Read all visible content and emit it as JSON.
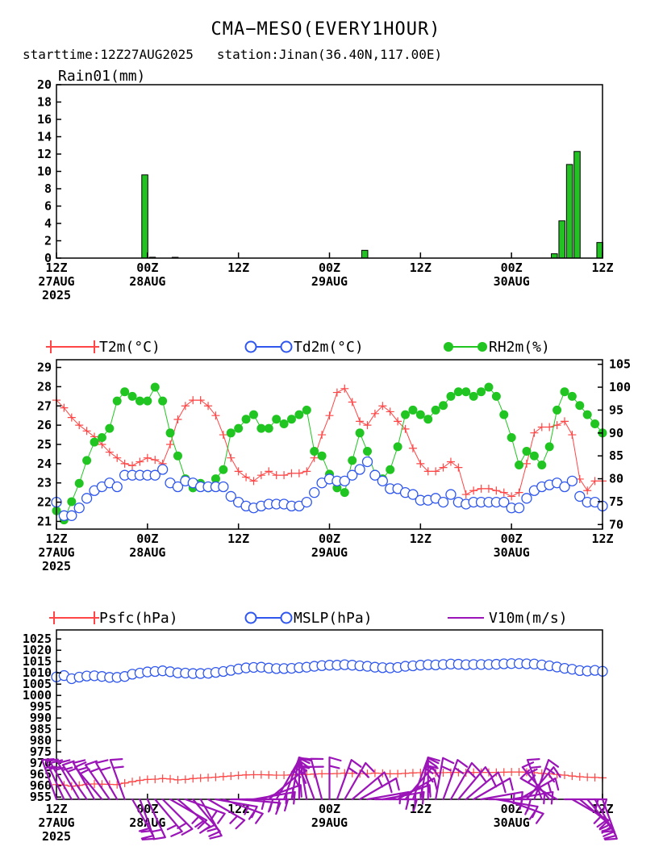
{
  "figure": {
    "title": "CMA−MESO(EVERY1HOUR)",
    "subtitle": "starttime:12Z27AUG2025   station:Jinan(36.40N,117.00E)"
  },
  "colors": {
    "rain": "#22c222",
    "t2m": "#ff4545",
    "td2m": "#2f57ee",
    "rh2m": "#21c521",
    "psfc": "#ff4545",
    "mslp": "#2f57ee",
    "wind": "#9a14b8"
  },
  "chart_data": [
    {
      "type": "bar",
      "title": "Rain01(mm)",
      "x_range": [
        0,
        72
      ],
      "ylim": [
        0,
        20
      ],
      "yticks": [
        "0",
        "2",
        "4",
        "6",
        "8",
        "10",
        "12",
        "14",
        "16",
        "18",
        "20"
      ],
      "xticks": [
        {
          "pos": 0,
          "lines": [
            "12Z",
            "27AUG",
            "2025"
          ]
        },
        {
          "pos": 12,
          "lines": [
            "00Z",
            "28AUG"
          ]
        },
        {
          "pos": 24,
          "lines": [
            "12Z"
          ]
        },
        {
          "pos": 36,
          "lines": [
            "00Z",
            "29AUG"
          ]
        },
        {
          "pos": 48,
          "lines": [
            "12Z"
          ]
        },
        {
          "pos": 60,
          "lines": [
            "00Z",
            "30AUG"
          ]
        },
        {
          "pos": 72,
          "lines": [
            "12Z"
          ]
        }
      ],
      "series": [
        {
          "values": [
            0,
            0,
            0,
            0,
            0,
            0,
            0,
            0,
            0,
            0,
            0,
            0,
            9.6,
            0.1,
            0,
            0,
            0.05,
            0,
            0,
            0,
            0,
            0,
            0,
            0,
            0,
            0,
            0,
            0,
            0,
            0,
            0,
            0,
            0,
            0,
            0,
            0,
            0,
            0,
            0,
            0,
            0,
            0.9,
            0,
            0,
            0,
            0,
            0,
            0,
            0,
            0,
            0,
            0,
            0,
            0,
            0,
            0,
            0,
            0,
            0,
            0,
            0,
            0,
            0,
            0,
            0,
            0,
            0.5,
            4.3,
            10.8,
            12.3,
            0,
            0,
            1.8
          ]
        }
      ]
    },
    {
      "type": "line",
      "x_range": [
        0,
        72
      ],
      "ylim": [
        20.6,
        29.4
      ],
      "yticks": [
        "21",
        "22",
        "23",
        "24",
        "25",
        "26",
        "27",
        "28",
        "29"
      ],
      "ylim_right": [
        69,
        106
      ],
      "yticks_right": [
        "70",
        "75",
        "80",
        "85",
        "90",
        "95",
        "100",
        "105"
      ],
      "xticks": [
        {
          "pos": 0,
          "lines": [
            "12Z",
            "27AUG",
            "2025"
          ]
        },
        {
          "pos": 12,
          "lines": [
            "00Z",
            "28AUG"
          ]
        },
        {
          "pos": 24,
          "lines": [
            "12Z"
          ]
        },
        {
          "pos": 36,
          "lines": [
            "00Z",
            "29AUG"
          ]
        },
        {
          "pos": 48,
          "lines": [
            "12Z"
          ]
        },
        {
          "pos": 60,
          "lines": [
            "00Z",
            "30AUG"
          ]
        },
        {
          "pos": 72,
          "lines": [
            "12Z"
          ]
        }
      ],
      "series": [
        {
          "name": "T2m(°C)",
          "axis": "left",
          "marker": "plus",
          "values": [
            27.3,
            26.9,
            26.4,
            26.0,
            25.7,
            25.4,
            25.0,
            24.6,
            24.3,
            24.0,
            23.9,
            24.1,
            24.3,
            24.2,
            24.0,
            25.0,
            26.3,
            27.0,
            27.3,
            27.3,
            27.0,
            26.5,
            25.5,
            24.3,
            23.6,
            23.3,
            23.1,
            23.4,
            23.6,
            23.4,
            23.4,
            23.5,
            23.5,
            23.6,
            24.3,
            25.5,
            26.5,
            27.7,
            27.9,
            27.2,
            26.2,
            26.0,
            26.6,
            27.0,
            26.7,
            26.2,
            25.8,
            24.8,
            24.0,
            23.6,
            23.6,
            23.8,
            24.1,
            23.8,
            22.4,
            22.6,
            22.7,
            22.7,
            22.6,
            22.5,
            22.3,
            22.5,
            24.0,
            25.6,
            25.9,
            25.9,
            26.0,
            26.2,
            25.5,
            23.2,
            22.6,
            23.1,
            23.1
          ]
        },
        {
          "name": "Td2m(°C)",
          "axis": "left",
          "marker": "circle",
          "values": [
            22.0,
            21.3,
            21.3,
            21.7,
            22.2,
            22.6,
            22.8,
            23.0,
            22.8,
            23.4,
            23.4,
            23.4,
            23.4,
            23.4,
            23.7,
            23.0,
            22.8,
            23.1,
            23.0,
            22.8,
            22.8,
            22.8,
            22.8,
            22.3,
            22.0,
            21.8,
            21.7,
            21.8,
            21.9,
            21.9,
            21.9,
            21.8,
            21.8,
            22.0,
            22.5,
            23.0,
            23.2,
            23.1,
            23.1,
            23.4,
            23.7,
            24.1,
            23.4,
            23.1,
            22.7,
            22.7,
            22.5,
            22.4,
            22.1,
            22.1,
            22.2,
            22.0,
            22.4,
            22.0,
            21.9,
            22.0,
            22.0,
            22.0,
            22.0,
            22.0,
            21.7,
            21.7,
            22.2,
            22.6,
            22.8,
            22.9,
            23.0,
            22.8,
            23.1,
            22.3,
            22.0,
            22.0,
            21.8
          ]
        },
        {
          "name": "RH2m(%)",
          "axis": "right",
          "marker": "dot",
          "values": [
            73,
            71,
            75,
            79,
            84,
            88,
            89,
            91,
            97,
            99,
            98,
            97,
            97,
            100,
            97,
            90,
            85,
            80,
            78,
            79,
            78,
            80,
            82,
            90,
            91,
            93,
            94,
            91,
            91,
            93,
            92,
            93,
            94,
            95,
            86,
            85,
            81,
            78,
            77,
            84,
            90,
            86,
            81,
            80,
            82,
            87,
            94,
            95,
            94,
            93,
            95,
            96,
            98,
            99,
            99,
            98,
            99,
            100,
            98,
            94,
            89,
            83,
            86,
            85,
            83,
            87,
            95,
            99,
            98,
            96,
            94,
            92,
            90
          ]
        },
        {
          "name": "RH2m(%)",
          "axis": "right",
          "marker": "dot",
          "values": []
        }
      ]
    },
    {
      "type": "line",
      "x_range": [
        0,
        72
      ],
      "ylim": [
        954,
        1029
      ],
      "yticks": [
        "955",
        "960",
        "965",
        "970",
        "975",
        "980",
        "985",
        "990",
        "995",
        "1000",
        "1005",
        "1010",
        "1015",
        "1020",
        "1025"
      ],
      "xticks": [
        {
          "pos": 0,
          "lines": [
            "12Z",
            "27AUG",
            "2025"
          ]
        },
        {
          "pos": 12,
          "lines": [
            "00Z",
            "28AUG"
          ]
        },
        {
          "pos": 24,
          "lines": [
            "12Z"
          ]
        },
        {
          "pos": 36,
          "lines": [
            "00Z",
            "29AUG"
          ]
        },
        {
          "pos": 48,
          "lines": [
            "12Z"
          ]
        },
        {
          "pos": 60,
          "lines": [
            "00Z",
            "30AUG"
          ]
        },
        {
          "pos": 72,
          "lines": [
            "12Z"
          ]
        }
      ],
      "series": [
        {
          "name": "Psfc(hPa)",
          "marker": "plus",
          "values": [
            960.5,
            960.3,
            959.8,
            960.2,
            960.6,
            960.8,
            960.7,
            960.6,
            960.5,
            961.2,
            961.8,
            962.4,
            962.8,
            962.9,
            963.2,
            963.0,
            962.6,
            962.8,
            963.2,
            963.4,
            963.6,
            963.8,
            964.1,
            964.3,
            964.6,
            964.8,
            964.9,
            964.9,
            964.8,
            964.7,
            964.7,
            964.8,
            964.9,
            965.0,
            965.2,
            965.3,
            965.3,
            965.4,
            965.6,
            965.5,
            965.4,
            965.4,
            965.6,
            965.5,
            965.3,
            965.3,
            965.5,
            965.7,
            965.8,
            965.8,
            965.7,
            965.8,
            965.9,
            965.9,
            965.8,
            965.9,
            965.9,
            965.9,
            965.9,
            966.0,
            966.1,
            966.1,
            966.0,
            965.8,
            965.5,
            965.3,
            965.0,
            964.7,
            964.3,
            964.0,
            963.8,
            963.7,
            963.5
          ]
        },
        {
          "name": "MSLP(hPa)",
          "marker": "circle",
          "values": [
            1008.2,
            1008.8,
            1007.4,
            1008.1,
            1008.6,
            1008.7,
            1008.4,
            1008.0,
            1008.0,
            1008.4,
            1009.4,
            1009.9,
            1010.4,
            1010.6,
            1010.9,
            1010.5,
            1010.0,
            1009.9,
            1009.7,
            1009.7,
            1009.8,
            1010.2,
            1010.6,
            1011.1,
            1011.7,
            1012.2,
            1012.4,
            1012.5,
            1012.1,
            1011.9,
            1011.9,
            1012.0,
            1012.3,
            1012.5,
            1012.9,
            1013.2,
            1013.4,
            1013.4,
            1013.6,
            1013.4,
            1013.1,
            1012.9,
            1012.5,
            1012.3,
            1012.2,
            1012.4,
            1012.9,
            1013.1,
            1013.4,
            1013.6,
            1013.5,
            1013.7,
            1013.9,
            1013.8,
            1013.6,
            1013.7,
            1013.7,
            1013.7,
            1013.8,
            1014.0,
            1014.1,
            1014.1,
            1014.0,
            1013.9,
            1013.5,
            1013.1,
            1012.6,
            1012.0,
            1011.6,
            1011.0,
            1010.8,
            1011.1,
            1010.7
          ]
        },
        {
          "name": "V10m(m/s)",
          "marker": "barb",
          "values": []
        }
      ]
    }
  ]
}
